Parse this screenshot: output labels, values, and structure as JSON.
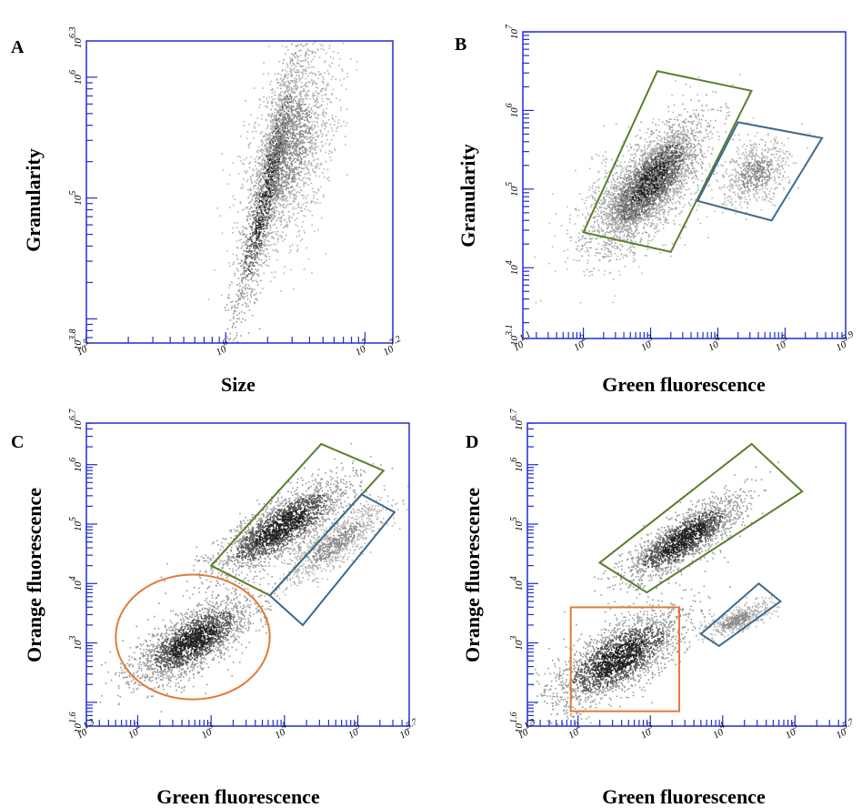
{
  "figure": {
    "description_free": true
  },
  "chart_data": [
    {
      "panel": "A",
      "type": "scatter",
      "xlabel": "Size",
      "ylabel": "Granularity",
      "x_scale": "log",
      "y_scale": "log",
      "xlim": [
        5,
        7.2
      ],
      "ylim": [
        3.8,
        6.3
      ],
      "x_tick_labels": [
        {
          "text": "10",
          "sup": "5",
          "pos": 5
        },
        {
          "text": "10",
          "sup": "6",
          "pos": 6
        },
        {
          "text": "10",
          "sup": "7",
          "pos": 7
        },
        {
          "text": "10",
          "sup": "7.2",
          "pos": 7.2
        }
      ],
      "y_tick_labels": [
        {
          "text": "10",
          "sup": "3.8",
          "pos": 3.8
        },
        {
          "text": "10",
          "sup": "5",
          "pos": 5
        },
        {
          "text": "10",
          "sup": "6",
          "pos": 6
        },
        {
          "text": "10",
          "sup": "6.3",
          "pos": 6.3
        }
      ],
      "populations": [
        {
          "cx": 6.3,
          "cy": 5.1,
          "sx": 0.12,
          "sy": 0.55,
          "rho": 0.9,
          "n": 1600,
          "dense": true
        },
        {
          "cx": 6.45,
          "cy": 5.4,
          "sx": 0.16,
          "sy": 0.4,
          "rho": 0.5,
          "n": 2200,
          "dense": false
        }
      ],
      "gates": []
    },
    {
      "panel": "B",
      "type": "scatter",
      "xlabel": "Green fluorescence",
      "ylabel": "Granularity",
      "x_scale": "log",
      "y_scale": "log",
      "xlim": [
        1.1,
        5.9
      ],
      "ylim": [
        3.1,
        7
      ],
      "x_tick_labels": [
        {
          "text": "10",
          "sup": "1.1",
          "pos": 1.1
        },
        {
          "text": "10",
          "sup": "2",
          "pos": 2
        },
        {
          "text": "10",
          "sup": "3",
          "pos": 3
        },
        {
          "text": "10",
          "sup": "4",
          "pos": 4
        },
        {
          "text": "10",
          "sup": "5",
          "pos": 5
        },
        {
          "text": "10",
          "sup": "5.9",
          "pos": 5.9
        }
      ],
      "y_tick_labels": [
        {
          "text": "10",
          "sup": "3.1",
          "pos": 3.1
        },
        {
          "text": "10",
          "sup": "4",
          "pos": 4
        },
        {
          "text": "10",
          "sup": "5",
          "pos": 5
        },
        {
          "text": "10",
          "sup": "6",
          "pos": 6
        },
        {
          "text": "10",
          "sup": "7",
          "pos": 7
        }
      ],
      "populations": [
        {
          "cx": 3.0,
          "cy": 5.1,
          "sx": 0.35,
          "sy": 0.35,
          "rho": 0.75,
          "n": 2600,
          "dense": true
        },
        {
          "cx": 2.9,
          "cy": 5.0,
          "sx": 0.5,
          "sy": 0.45,
          "rho": 0.6,
          "n": 1500,
          "dense": false
        },
        {
          "cx": 4.55,
          "cy": 5.2,
          "sx": 0.25,
          "sy": 0.2,
          "rho": 0.3,
          "n": 700,
          "dense": false
        }
      ],
      "gates": [
        {
          "shape": "polygon",
          "color": "#5a7f2c",
          "points": [
            [
              2.0,
              4.45
            ],
            [
              3.1,
              6.5
            ],
            [
              4.5,
              6.25
            ],
            [
              3.3,
              4.2
            ]
          ]
        },
        {
          "shape": "polygon",
          "color": "#3d6a8e",
          "points": [
            [
              3.7,
              4.85
            ],
            [
              4.3,
              5.85
            ],
            [
              5.55,
              5.65
            ],
            [
              4.8,
              4.6
            ]
          ]
        }
      ]
    },
    {
      "panel": "C",
      "type": "scatter",
      "xlabel": "Green fluorescence",
      "ylabel": "Orange fluorescence",
      "x_scale": "log",
      "y_scale": "log",
      "xlim": [
        1.3,
        5.7
      ],
      "ylim": [
        1.6,
        6.7
      ],
      "x_tick_labels": [
        {
          "text": "10",
          "sup": "1.3",
          "pos": 1.3
        },
        {
          "text": "10",
          "sup": "2",
          "pos": 2
        },
        {
          "text": "10",
          "sup": "3",
          "pos": 3
        },
        {
          "text": "10",
          "sup": "4",
          "pos": 4
        },
        {
          "text": "10",
          "sup": "5",
          "pos": 5
        },
        {
          "text": "10",
          "sup": "5.7",
          "pos": 5.7
        }
      ],
      "y_tick_labels": [
        {
          "text": "10",
          "sup": "1.6",
          "pos": 1.6
        },
        {
          "text": "10",
          "sup": "3",
          "pos": 3
        },
        {
          "text": "10",
          "sup": "4",
          "pos": 4
        },
        {
          "text": "10",
          "sup": "5",
          "pos": 5
        },
        {
          "text": "10",
          "sup": "6",
          "pos": 6
        },
        {
          "text": "10",
          "sup": "6.7",
          "pos": 6.7
        }
      ],
      "populations": [
        {
          "cx": 2.75,
          "cy": 3.05,
          "sx": 0.4,
          "sy": 0.35,
          "rho": 0.7,
          "n": 2300,
          "dense": true
        },
        {
          "cx": 3.95,
          "cy": 4.95,
          "sx": 0.45,
          "sy": 0.4,
          "rho": 0.8,
          "n": 2300,
          "dense": true
        },
        {
          "cx": 4.7,
          "cy": 4.7,
          "sx": 0.35,
          "sy": 0.35,
          "rho": 0.85,
          "n": 900,
          "dense": false
        }
      ],
      "gates": [
        {
          "shape": "polygon",
          "color": "#5a7f2c",
          "points": [
            [
              3.0,
              4.3
            ],
            [
              4.5,
              6.35
            ],
            [
              5.35,
              5.9
            ],
            [
              3.8,
              3.8
            ]
          ]
        },
        {
          "shape": "polygon",
          "color": "#3d6a8e",
          "points": [
            [
              3.8,
              3.8
            ],
            [
              5.05,
              5.5
            ],
            [
              5.5,
              5.2
            ],
            [
              4.25,
              3.3
            ]
          ]
        },
        {
          "shape": "ellipse",
          "color": "#e07b39",
          "cx": 2.75,
          "cy": 3.1,
          "rx": 1.05,
          "ry": 1.05
        }
      ]
    },
    {
      "panel": "D",
      "type": "scatter",
      "xlabel": "Green fluorescence",
      "ylabel": "Orange fluorescence",
      "x_scale": "log",
      "y_scale": "log",
      "xlim": [
        1.3,
        5.7
      ],
      "ylim": [
        1.6,
        6.7
      ],
      "x_tick_labels": [
        {
          "text": "10",
          "sup": "1.3",
          "pos": 1.3
        },
        {
          "text": "10",
          "sup": "2",
          "pos": 2
        },
        {
          "text": "10",
          "sup": "3",
          "pos": 3
        },
        {
          "text": "10",
          "sup": "4",
          "pos": 4
        },
        {
          "text": "10",
          "sup": "5",
          "pos": 5
        },
        {
          "text": "10",
          "sup": "5.7",
          "pos": 5.7
        }
      ],
      "y_tick_labels": [
        {
          "text": "10",
          "sup": "1.6",
          "pos": 1.6
        },
        {
          "text": "10",
          "sup": "3",
          "pos": 3
        },
        {
          "text": "10",
          "sup": "4",
          "pos": 4
        },
        {
          "text": "10",
          "sup": "5",
          "pos": 5
        },
        {
          "text": "10",
          "sup": "6",
          "pos": 6
        },
        {
          "text": "10",
          "sup": "6.7",
          "pos": 6.7
        }
      ],
      "populations": [
        {
          "cx": 2.55,
          "cy": 2.75,
          "sx": 0.45,
          "sy": 0.4,
          "rho": 0.7,
          "n": 2400,
          "dense": true
        },
        {
          "cx": 3.45,
          "cy": 4.75,
          "sx": 0.4,
          "sy": 0.35,
          "rho": 0.8,
          "n": 2000,
          "dense": true
        },
        {
          "cx": 4.2,
          "cy": 3.4,
          "sx": 0.22,
          "sy": 0.14,
          "rho": 0.7,
          "n": 500,
          "dense": false
        }
      ],
      "gates": [
        {
          "shape": "polygon",
          "color": "#5a7f2c",
          "points": [
            [
              2.3,
              4.35
            ],
            [
              2.95,
              3.85
            ],
            [
              5.1,
              5.55
            ],
            [
              4.4,
              6.35
            ]
          ]
        },
        {
          "shape": "polygon",
          "color": "#3d6a8e",
          "points": [
            [
              3.7,
              3.15
            ],
            [
              3.95,
              2.95
            ],
            [
              4.8,
              3.7
            ],
            [
              4.5,
              4.0
            ]
          ]
        },
        {
          "shape": "rect",
          "color": "#e07b39",
          "x0": 1.9,
          "y0": 1.85,
          "x1": 3.4,
          "y1": 3.6
        }
      ]
    }
  ],
  "style": {
    "axis_color": "#1f2fd1",
    "point_light": "#9a9a9a",
    "point_dark": "#222222"
  }
}
